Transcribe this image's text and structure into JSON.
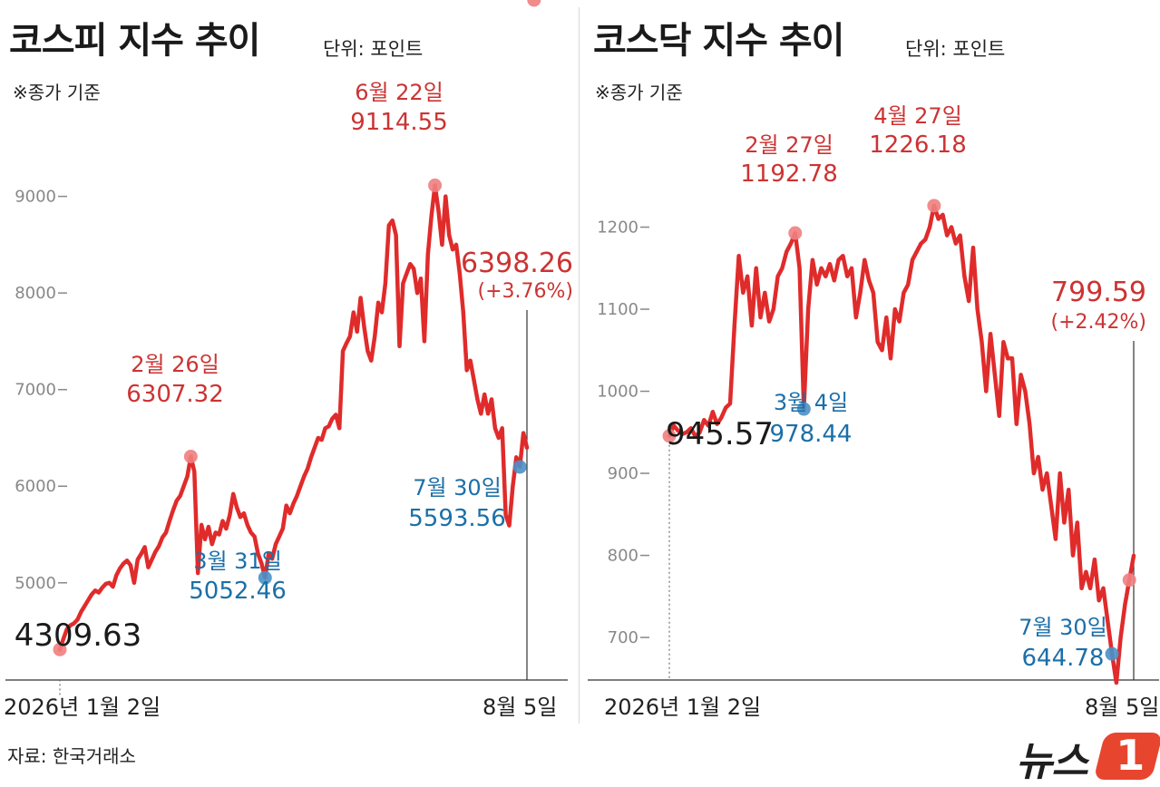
{
  "source": "자료: 한국거래소",
  "logo": {
    "text": "뉴스",
    "mark": "1"
  },
  "chart_data": [
    {
      "type": "line",
      "title": "코스피 지수 추이",
      "unit": "단위: 포인트",
      "note": "※종가 기준",
      "x_start_label": "2026년 1월 2일",
      "x_end_label": "8월 5일",
      "ylim": [
        3900,
        9550
      ],
      "yticks": [
        5000,
        6000,
        7000,
        8000,
        9000
      ],
      "ytick_labels": [
        "5000",
        "6000",
        "7000",
        "8000",
        "9000"
      ],
      "grid": false,
      "series": [
        {
          "values": [
            4309.63,
            4420,
            4520,
            4560,
            4580,
            4620,
            4700,
            4760,
            4820,
            4880,
            4920,
            4900,
            4950,
            4990,
            5000,
            4960,
            5080,
            5150,
            5200,
            5230,
            5180,
            5000,
            5240,
            5300,
            5370,
            5160,
            5240,
            5320,
            5380,
            5470,
            5520,
            5640,
            5750,
            5850,
            5900,
            6000,
            6100,
            6307.32,
            6150,
            5100,
            5600,
            5450,
            5580,
            5400,
            5520,
            5500,
            5640,
            5560,
            5700,
            5920,
            5780,
            5680,
            5720,
            5600,
            5520,
            5480,
            5300,
            5200,
            5052.46,
            5300,
            5250,
            5400,
            5480,
            5560,
            5800,
            5720,
            5820,
            5900,
            6000,
            6100,
            6180,
            6300,
            6400,
            6500,
            6480,
            6600,
            6620,
            6700,
            6740,
            6600,
            7400,
            7480,
            7550,
            7800,
            7600,
            7950,
            7650,
            7400,
            7300,
            7550,
            7900,
            7800,
            8100,
            8700,
            8750,
            8600,
            7450,
            8100,
            8200,
            8300,
            8250,
            8000,
            8150,
            7500,
            8400,
            8800,
            9114.55,
            8850,
            8500,
            9000,
            8600,
            8450,
            8500,
            8200,
            7800,
            7200,
            7300,
            7100,
            6900,
            6750,
            6950,
            6750,
            6900,
            6600,
            6500,
            6600,
            5700,
            5593.56,
            6000,
            6300,
            6200,
            6550,
            6398.26
          ]
        }
      ],
      "annotations": [
        {
          "date": "2026년 1월 2일",
          "value": "4309.63",
          "color": "#1a1a1a"
        },
        {
          "date": "2월 26일",
          "value": "6307.32",
          "color": "#cc3333"
        },
        {
          "date": "3월 31일",
          "value": "5052.46",
          "color": "#1b6fa8"
        },
        {
          "date": "6월 22일",
          "value": "9114.55",
          "color": "#cc3333"
        },
        {
          "date": "7월 30일",
          "value": "5593.56",
          "color": "#1b6fa8"
        },
        {
          "date": "8월 5일",
          "value": "6398.26",
          "change": "(+3.76%)",
          "color": "#cc3333"
        }
      ],
      "annotation_labels": {
        "start_value": "4309.63",
        "a1_date": "2월 26일",
        "a1_value": "6307.32",
        "a2_date": "3월 31일",
        "a2_value": "5052.46",
        "a3_date": "6월 22일",
        "a3_value": "9114.55",
        "a4_date": "7월 30일",
        "a4_value": "5593.56",
        "end_value": "6398.26",
        "end_change": "(+3.76%)"
      }
    },
    {
      "type": "line",
      "title": "코스닥 지수 추이",
      "unit": "단위: 포인트",
      "note": "※종가 기준",
      "x_start_label": "2026년 1월 2일",
      "x_end_label": "8월 5일",
      "ylim": [
        615,
        1300
      ],
      "yticks": [
        700,
        800,
        900,
        1000,
        1100,
        1200
      ],
      "ytick_labels": [
        "700",
        "800",
        "900",
        "1000",
        "1100",
        "1200"
      ],
      "grid": false,
      "series": [
        {
          "values": [
            945.57,
            958,
            952,
            948,
            950,
            955,
            945,
            950,
            965,
            958,
            975,
            960,
            968,
            980,
            985,
            1080,
            1165,
            1120,
            1140,
            1080,
            1150,
            1090,
            1120,
            1085,
            1100,
            1140,
            1150,
            1170,
            1180,
            1192.78,
            1150,
            978.44,
            1100,
            1160,
            1130,
            1150,
            1140,
            1155,
            1135,
            1160,
            1165,
            1140,
            1150,
            1090,
            1120,
            1160,
            1135,
            1120,
            1060,
            1050,
            1090,
            1040,
            1100,
            1085,
            1120,
            1130,
            1160,
            1170,
            1180,
            1185,
            1200,
            1226.18,
            1210,
            1215,
            1190,
            1200,
            1180,
            1190,
            1140,
            1110,
            1175,
            1100,
            1060,
            1000,
            1070,
            1020,
            970,
            1060,
            1040,
            1040,
            960,
            1020,
            1000,
            960,
            900,
            920,
            880,
            900,
            860,
            820,
            900,
            840,
            880,
            800,
            840,
            760,
            780,
            760,
            795,
            745,
            760,
            720,
            680,
            644.78,
            700,
            740,
            770,
            799.59
          ]
        }
      ],
      "annotations": [
        {
          "date": "2026년 1월 2일",
          "value": "945.57",
          "color": "#1a1a1a"
        },
        {
          "date": "2월 27일",
          "value": "1192.78",
          "color": "#cc3333"
        },
        {
          "date": "3월 4일",
          "value": "978.44",
          "color": "#1b6fa8"
        },
        {
          "date": "4월 27일",
          "value": "1226.18",
          "color": "#cc3333"
        },
        {
          "date": "7월 30일",
          "value": "644.78",
          "color": "#1b6fa8"
        },
        {
          "date": "8월 5일",
          "value": "799.59",
          "change": "(+2.42%)",
          "color": "#cc3333"
        }
      ],
      "annotation_labels": {
        "start_value": "945.57",
        "a1_date": "2월 27일",
        "a1_value": "1192.78",
        "a2_date": "3월 4일",
        "a2_value": "978.44",
        "a3_date": "4월 27일",
        "a3_value": "1226.18",
        "a4_date": "7월 30일",
        "a4_value": "644.78",
        "end_value": "799.59",
        "end_change": "(+2.42%)"
      }
    }
  ],
  "colors": {
    "line": "#e02b2b",
    "high": "#cc3333",
    "low": "#1b6fa8",
    "high_dot": "#f08080",
    "low_dot": "#4a90c8",
    "axis": "#555555"
  }
}
